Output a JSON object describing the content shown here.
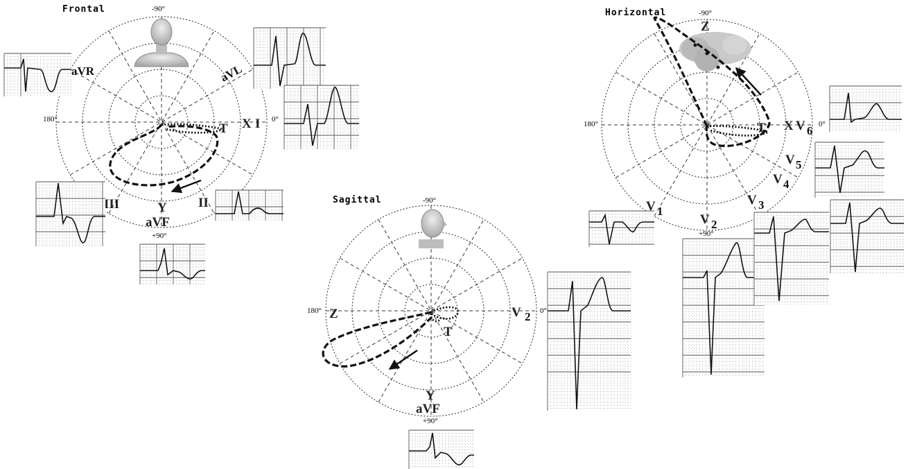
{
  "panels": {
    "frontal": {
      "title": "Frontal",
      "deg_top": "-90°",
      "deg_left": "180°",
      "deg_right": "0°",
      "deg_bottom": "+90°",
      "leads": {
        "avr": "aVR",
        "avl": "aVL",
        "i": "I",
        "ii": "II",
        "iii": "III",
        "avf": "aVF"
      },
      "axes": {
        "x": "X",
        "y": "Y"
      },
      "t_label": "T",
      "ecg_strips": [
        "aVR",
        "aVL",
        "I",
        "III",
        "II",
        "aVF"
      ]
    },
    "sagittal": {
      "title": "Sagittal",
      "deg_top": "-90°",
      "deg_left": "180°",
      "deg_right": "0°",
      "deg_bottom": "+90°",
      "leads": {
        "v2": "V",
        "v2_sub": "2",
        "avf": "aVF"
      },
      "axes": {
        "z": "Z",
        "y": "Y"
      },
      "t_label": "T",
      "ecg_strips": [
        "V2",
        "aVF"
      ]
    },
    "horizontal": {
      "title": "Horizontal",
      "deg_top": "-90°",
      "deg_left": "180°",
      "deg_right": "0°",
      "deg_bottom": "+90°",
      "leads": {
        "v1": "V",
        "v1_sub": "1",
        "v2": "V",
        "v2_sub": "2",
        "v3": "V",
        "v3_sub": "3",
        "v4": "V",
        "v4_sub": "4",
        "v5": "V",
        "v5_sub": "5",
        "v6": "V",
        "v6_sub": "6"
      },
      "axes": {
        "z": "Z",
        "x": "X"
      },
      "t_label": "T",
      "ecg_strips": [
        "V6",
        "V5",
        "V1",
        "V2",
        "V3",
        "V4"
      ]
    }
  },
  "colors": {
    "ink": "#111111",
    "grid": "#9a9a9a",
    "figure": "#c9c9c9"
  }
}
